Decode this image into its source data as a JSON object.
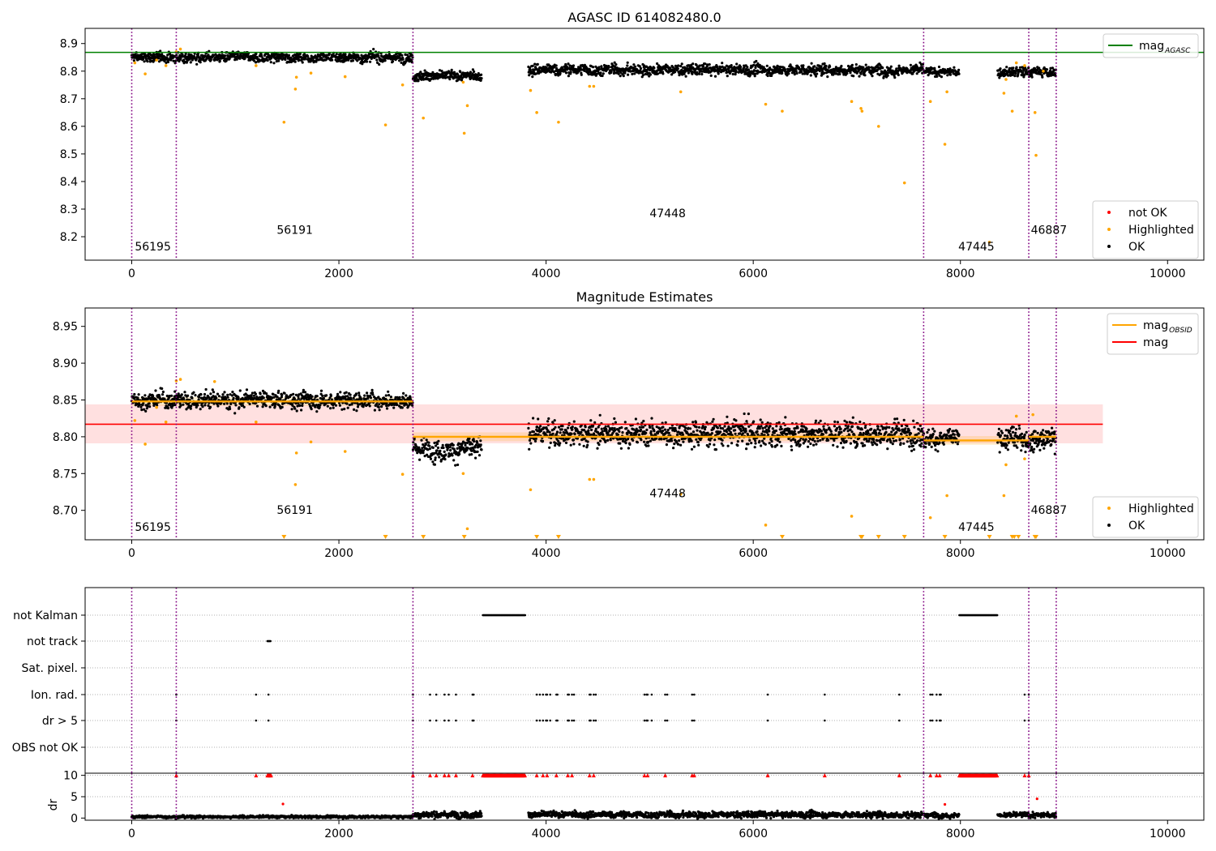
{
  "chart_data": [
    {
      "type": "scatter",
      "name": "agasc-panel",
      "title": "AGASC ID 614082480.0",
      "xlim": [
        -450,
        10350
      ],
      "ylim": [
        8.115,
        8.955
      ],
      "x_ticks": [
        0,
        2000,
        4000,
        6000,
        8000,
        10000
      ],
      "x_tick_labels": [
        "0",
        "2000",
        "4000",
        "6000",
        "8000",
        "10000"
      ],
      "y_ticks": [
        8.2,
        8.3,
        8.4,
        8.5,
        8.6,
        8.7,
        8.8,
        8.9
      ],
      "y_tick_labels": [
        "8.2",
        "8.3",
        "8.4",
        "8.5",
        "8.6",
        "8.7",
        "8.8",
        "8.9"
      ],
      "reference_line": {
        "label": "mag",
        "label_sub": "AGASC",
        "value": 8.868,
        "color": "#008000"
      },
      "legend_lines": {
        "placement": "top-right",
        "entries": [
          {
            "label": "mag",
            "sub": "AGASC",
            "color": "#008000"
          }
        ]
      },
      "legend_points": {
        "placement": "bottom-right",
        "entries": [
          {
            "label": "not OK",
            "color": "#ff0000"
          },
          {
            "label": "Highlighted",
            "color": "#ffa500"
          },
          {
            "label": "OK",
            "color": "#000000"
          }
        ]
      },
      "obsid_boundaries": [
        0,
        430,
        2715,
        7645,
        8660,
        8925
      ],
      "obsid_labels": [
        {
          "text": "56195",
          "x": 30,
          "y": 8.15
        },
        {
          "text": "56191",
          "x": 1400,
          "y": 8.21
        },
        {
          "text": "47448",
          "x": 5000,
          "y": 8.27
        },
        {
          "text": "47445",
          "x": 7980,
          "y": 8.15
        },
        {
          "text": "46887",
          "x": 8680,
          "y": 8.21
        }
      ],
      "ok_segments": [
        {
          "x": [
            0,
            2715
          ],
          "mean": 8.85,
          "spread": 0.012
        },
        {
          "x": [
            2715,
            3380
          ],
          "mean": 8.782,
          "spread": 0.012
        },
        {
          "x": [
            3830,
            7645
          ],
          "mean": 8.805,
          "spread": 0.014
        },
        {
          "x": [
            7645,
            7990
          ],
          "mean": 8.797,
          "spread": 0.01
        },
        {
          "x": [
            8360,
            8925
          ],
          "mean": 8.797,
          "spread": 0.012
        }
      ],
      "highlighted_points": [
        [
          30,
          8.83
        ],
        [
          130,
          8.79
        ],
        [
          240,
          8.84
        ],
        [
          330,
          8.82
        ],
        [
          430,
          8.87
        ],
        [
          470,
          8.88
        ],
        [
          1200,
          8.82
        ],
        [
          1470,
          8.615
        ],
        [
          1580,
          8.735
        ],
        [
          1590,
          8.778
        ],
        [
          1730,
          8.793
        ],
        [
          2060,
          8.78
        ],
        [
          2450,
          8.605
        ],
        [
          2615,
          8.75
        ],
        [
          2815,
          8.63
        ],
        [
          3200,
          8.76
        ],
        [
          3210,
          8.575
        ],
        [
          3240,
          8.675
        ],
        [
          3850,
          8.73
        ],
        [
          3910,
          8.65
        ],
        [
          4120,
          8.615
        ],
        [
          4420,
          8.745
        ],
        [
          4460,
          8.745
        ],
        [
          5300,
          8.725
        ],
        [
          6120,
          8.68
        ],
        [
          6280,
          8.655
        ],
        [
          6950,
          8.69
        ],
        [
          7040,
          8.665
        ],
        [
          7050,
          8.655
        ],
        [
          7210,
          8.6
        ],
        [
          7460,
          8.395
        ],
        [
          7710,
          8.69
        ],
        [
          7850,
          8.535
        ],
        [
          7870,
          8.725
        ],
        [
          8280,
          8.18
        ],
        [
          8420,
          8.72
        ],
        [
          8440,
          8.77
        ],
        [
          8500,
          8.655
        ],
        [
          8540,
          8.83
        ],
        [
          8620,
          8.82
        ],
        [
          8720,
          8.65
        ],
        [
          8730,
          8.495
        ],
        [
          8800,
          8.8
        ]
      ]
    },
    {
      "type": "scatter",
      "name": "magnitude-estimates-panel",
      "title": "Magnitude Estimates",
      "xlim": [
        -450,
        10350
      ],
      "ylim": [
        8.66,
        8.975
      ],
      "x_ticks": [
        0,
        2000,
        4000,
        6000,
        8000,
        10000
      ],
      "x_tick_labels": [
        "0",
        "2000",
        "4000",
        "6000",
        "8000",
        "10000"
      ],
      "y_ticks": [
        8.7,
        8.75,
        8.8,
        8.85,
        8.9,
        8.95
      ],
      "y_tick_labels": [
        "8.70",
        "8.75",
        "8.80",
        "8.85",
        "8.90",
        "8.95"
      ],
      "reference_line": {
        "label": "mag",
        "value": 8.817,
        "band": [
          8.791,
          8.844
        ],
        "x_end": 9375,
        "color": "#ff0000"
      },
      "obsid_mag_lines": [
        {
          "x": [
            0,
            2715
          ],
          "value": 8.848
        },
        {
          "x": [
            2715,
            7645
          ],
          "value": 8.8
        },
        {
          "x": [
            7645,
            8660
          ],
          "value": 8.795
        },
        {
          "x": [
            8660,
            8925
          ],
          "value": 8.8
        }
      ],
      "legend_lines": {
        "placement": "top-right",
        "entries": [
          {
            "label": "mag",
            "sub": "OBSID",
            "color": "#ffa500"
          },
          {
            "label": "mag",
            "color": "#ff0000"
          }
        ]
      },
      "legend_points": {
        "placement": "bottom-right",
        "entries": [
          {
            "label": "Highlighted",
            "color": "#ffa500"
          },
          {
            "label": "OK",
            "color": "#000000"
          }
        ]
      },
      "obsid_boundaries": [
        0,
        430,
        2715,
        7645,
        8660,
        8925
      ],
      "obsid_labels": [
        {
          "text": "56195",
          "x": 30,
          "y": 8.672
        },
        {
          "text": "56191",
          "x": 1400,
          "y": 8.695
        },
        {
          "text": "47448",
          "x": 5000,
          "y": 8.718
        },
        {
          "text": "47445",
          "x": 7980,
          "y": 8.672
        },
        {
          "text": "46887",
          "x": 8680,
          "y": 8.695
        }
      ],
      "ok_segments": [
        {
          "x": [
            0,
            2715
          ],
          "mean": 8.85,
          "spread": 0.008
        },
        {
          "x": [
            2715,
            3380
          ],
          "mean": 8.783,
          "spread": 0.01
        },
        {
          "x": [
            3830,
            7645
          ],
          "mean": 8.805,
          "spread": 0.012
        },
        {
          "x": [
            7645,
            7990
          ],
          "mean": 8.797,
          "spread": 0.008
        },
        {
          "x": [
            8360,
            8925
          ],
          "mean": 8.797,
          "spread": 0.01
        }
      ],
      "highlighted_points": [
        [
          30,
          8.822
        ],
        [
          130,
          8.79
        ],
        [
          240,
          8.84
        ],
        [
          330,
          8.82
        ],
        [
          430,
          8.876
        ],
        [
          470,
          8.878
        ],
        [
          800,
          8.875
        ],
        [
          1200,
          8.82
        ],
        [
          1580,
          8.735
        ],
        [
          1590,
          8.778
        ],
        [
          1730,
          8.793
        ],
        [
          2060,
          8.78
        ],
        [
          2615,
          8.749
        ],
        [
          3200,
          8.75
        ],
        [
          3240,
          8.675
        ],
        [
          3850,
          8.728
        ],
        [
          4420,
          8.742
        ],
        [
          4460,
          8.742
        ],
        [
          5300,
          8.722
        ],
        [
          6120,
          8.68
        ],
        [
          6950,
          8.692
        ],
        [
          7710,
          8.69
        ],
        [
          7870,
          8.72
        ],
        [
          8420,
          8.72
        ],
        [
          8440,
          8.762
        ],
        [
          8540,
          8.828
        ],
        [
          8620,
          8.77
        ],
        [
          8700,
          8.83
        ]
      ],
      "below_range_markers": [
        1470,
        2450,
        2815,
        3210,
        3910,
        4120,
        6280,
        7040,
        7050,
        7210,
        7460,
        7850,
        8280,
        8500,
        8520,
        8560,
        8720,
        8730
      ]
    },
    {
      "type": "scatter",
      "name": "flags-panel",
      "xlim": [
        -450,
        10350
      ],
      "flag_rows": [
        "not Kalman",
        "not track",
        "Sat. pixel.",
        "Ion. rad.",
        "dr > 5",
        "OBS not OK"
      ],
      "flags": {
        "not Kalman": [
          [
            3390,
            3800
          ],
          [
            7990,
            8360
          ]
        ],
        "not track": [
          [
            1310,
            1345
          ]
        ],
        "Sat. pixel.": [],
        "Ion. rad.": [
          430,
          1200,
          1320,
          2715,
          2880,
          2940,
          3020,
          3060,
          3130,
          3290,
          3300,
          3910,
          3940,
          3970,
          4000,
          4010,
          4040,
          4100,
          4110,
          4210,
          4220,
          4250,
          4270,
          4420,
          4430,
          4460,
          4480,
          4950,
          4970,
          4980,
          5020,
          5150,
          5170,
          5410,
          5430,
          6140,
          6690,
          7410,
          7710,
          7730,
          7770,
          7800,
          7810,
          8620,
          8660
        ],
        "dr > 5": [
          430,
          1200,
          1320,
          2715,
          2880,
          2940,
          3020,
          3060,
          3130,
          3290,
          3300,
          3910,
          3940,
          3970,
          4000,
          4010,
          4040,
          4100,
          4110,
          4210,
          4220,
          4250,
          4270,
          4420,
          4430,
          4460,
          4480,
          4950,
          4970,
          4980,
          5020,
          5150,
          5170,
          5410,
          5430,
          6140,
          6690,
          7410,
          7710,
          7730,
          7770,
          7800,
          7810,
          8620,
          8660
        ],
        "OBS not OK": []
      },
      "obsid_boundaries": [
        0,
        430,
        2715,
        7645,
        8660,
        8925
      ]
    },
    {
      "type": "scatter",
      "name": "dr-panel",
      "ylabel": "dr",
      "xlim": [
        -450,
        10350
      ],
      "ylim": [
        -0.5,
        10.5
      ],
      "x_ticks": [
        0,
        2000,
        4000,
        6000,
        8000,
        10000
      ],
      "x_tick_labels": [
        "0",
        "2000",
        "4000",
        "6000",
        "8000",
        "10000"
      ],
      "y_ticks": [
        0,
        5,
        10
      ],
      "y_tick_labels": [
        "0",
        "5",
        "10"
      ],
      "obsid_boundaries": [
        0,
        430,
        2715,
        7645,
        8660,
        8925
      ],
      "ok_segments": [
        {
          "x": [
            0,
            2715
          ],
          "mean": 0.3,
          "spread": 0.2
        },
        {
          "x": [
            2715,
            3380
          ],
          "mean": 0.8,
          "spread": 0.5
        },
        {
          "x": [
            3830,
            7645
          ],
          "mean": 0.8,
          "spread": 0.5
        },
        {
          "x": [
            7645,
            7990
          ],
          "mean": 0.7,
          "spread": 0.4
        },
        {
          "x": [
            8360,
            8925
          ],
          "mean": 0.7,
          "spread": 0.4
        }
      ],
      "capped_points_value": 10,
      "capped_ranges": [
        [
          3390,
          3800
        ],
        [
          7990,
          8360
        ],
        [
          1310,
          1345
        ]
      ],
      "capped_points": [
        430,
        1200,
        2715,
        2880,
        2940,
        3020,
        3060,
        3130,
        3290,
        3910,
        3970,
        4010,
        4100,
        4210,
        4250,
        4420,
        4460,
        4950,
        4980,
        5150,
        5410,
        5430,
        6140,
        6690,
        7410,
        7710,
        7770,
        7800,
        8620,
        8660
      ],
      "red_points": [
        [
          1460,
          3.3
        ],
        [
          7850,
          3.2
        ],
        [
          8740,
          4.5
        ]
      ]
    }
  ]
}
